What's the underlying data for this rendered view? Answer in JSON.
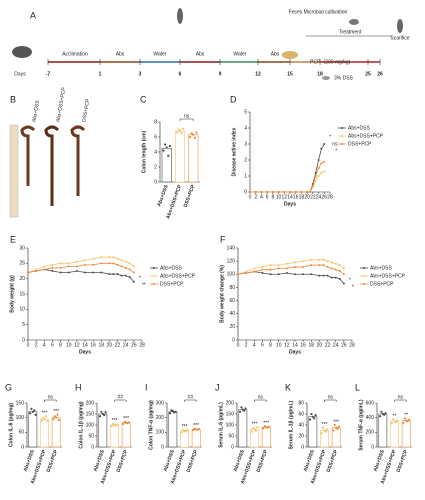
{
  "timeline": {
    "panel": "A",
    "phases": [
      "Acclimation",
      "Abs",
      "Water",
      "Abs",
      "Water",
      "Abs"
    ],
    "days_label": "Days",
    "days": [
      -7,
      1,
      3,
      6,
      9,
      12,
      15,
      18,
      25,
      26
    ],
    "feces": "Feces Microbial cultivation",
    "treatment": "Treatment",
    "pcp": "PCP（200 mg/kg)",
    "dss": "3% DSS",
    "end": "Scarifice"
  },
  "photo": {
    "panel": "B",
    "labels": [
      "Abs+DSS",
      "Abs+DSS+PCP",
      "DSS+PCP"
    ]
  },
  "chart_data": [
    {
      "type": "bar",
      "panel": "C",
      "ylabel": "Colon length (cm)",
      "categories": [
        "Abs+DSS",
        "Abs+DSS+PCP",
        "DSS+PCP"
      ],
      "colors": [
        "#4d4d4d",
        "#f5c46a",
        "#f08a3c"
      ],
      "values": [
        4.5,
        6.8,
        6.3
      ],
      "points": [
        [
          4.2,
          5.0,
          4.6,
          3.5,
          4.8
        ],
        [
          6.6,
          7.0,
          6.8,
          6.5,
          7.1
        ],
        [
          6.0,
          6.5,
          6.3,
          5.9,
          6.6
        ]
      ],
      "ylim": [
        0,
        8
      ],
      "yticks": [
        0,
        2,
        4,
        6,
        8
      ],
      "annotation": "ns"
    },
    {
      "type": "line",
      "panel": "D",
      "ylabel": "Disease active index",
      "xlabel": "Days",
      "x": [
        0,
        2,
        4,
        6,
        8,
        10,
        12,
        14,
        16,
        18,
        20,
        21,
        22,
        23,
        24,
        25,
        26
      ],
      "xlim": [
        0,
        28
      ],
      "xticks": [
        0,
        2,
        4,
        6,
        8,
        10,
        12,
        14,
        16,
        18,
        20,
        22,
        24,
        26,
        28
      ],
      "ylim": [
        0,
        5
      ],
      "yticks": [
        0,
        1,
        2,
        3,
        4,
        5
      ],
      "series": [
        {
          "name": "Abs+DSS",
          "color": "#4d4d4d",
          "values": [
            0,
            0,
            0,
            0,
            0,
            0,
            0,
            0,
            0,
            0,
            0,
            0,
            0.5,
            1.2,
            2.0,
            2.7,
            3.0
          ]
        },
        {
          "name": "Abs+DSS+PCP",
          "color": "#f5c46a",
          "values": [
            0,
            0,
            0,
            0,
            0,
            0,
            0,
            0,
            0,
            0,
            0,
            0,
            0.3,
            0.7,
            1.0,
            1.2,
            1.3
          ]
        },
        {
          "name": "DSS+PCP",
          "color": "#f08a3c",
          "values": [
            0,
            0,
            0,
            0,
            0,
            0,
            0,
            0,
            0,
            0,
            0,
            0,
            0.4,
            1.0,
            1.5,
            1.8,
            1.9
          ]
        }
      ],
      "annotations": [
        "*",
        "ns",
        "*"
      ]
    },
    {
      "type": "line",
      "panel": "E",
      "ylabel": "Body weight (g)",
      "xlabel": "Days",
      "x": [
        0,
        2,
        4,
        6,
        8,
        10,
        12,
        14,
        16,
        18,
        20,
        21,
        22,
        23,
        24,
        25,
        26
      ],
      "xlim": [
        0,
        28
      ],
      "xticks": [
        0,
        2,
        4,
        6,
        8,
        10,
        12,
        14,
        16,
        18,
        20,
        22,
        24,
        26,
        28
      ],
      "ylim": [
        0,
        30
      ],
      "yticks": [
        0,
        5,
        10,
        15,
        20,
        25,
        30
      ],
      "series": [
        {
          "name": "Abs+DSS",
          "color": "#4d4d4d",
          "values": [
            22,
            22.5,
            23,
            22.5,
            22,
            22,
            22.5,
            22,
            22,
            22,
            21.5,
            21.5,
            21.5,
            21,
            21,
            20.5,
            19
          ]
        },
        {
          "name": "Abs+DSS+PCP",
          "color": "#f5c46a",
          "values": [
            22,
            23,
            24,
            24.5,
            25,
            25,
            25.5,
            26,
            26.5,
            27,
            27,
            27,
            26.5,
            26,
            25.5,
            25,
            24
          ]
        },
        {
          "name": "DSS+PCP",
          "color": "#f08a3c",
          "values": [
            22,
            22.5,
            23,
            23.5,
            23.5,
            24,
            24,
            24.5,
            24.5,
            25,
            25,
            25,
            24.5,
            24,
            23.5,
            23,
            22
          ]
        }
      ],
      "annotations": [
        "*",
        "**"
      ]
    },
    {
      "type": "line",
      "panel": "F",
      "ylabel": "Body weight change (%)",
      "xlabel": "Days",
      "x": [
        0,
        2,
        4,
        6,
        8,
        10,
        12,
        14,
        16,
        18,
        20,
        21,
        22,
        23,
        24,
        25,
        26
      ],
      "xlim": [
        0,
        28
      ],
      "xticks": [
        0,
        2,
        4,
        6,
        8,
        10,
        12,
        14,
        16,
        18,
        20,
        22,
        24,
        26,
        28
      ],
      "ylim": [
        0,
        140
      ],
      "yticks": [
        0,
        20,
        40,
        60,
        80,
        100,
        120,
        140
      ],
      "series": [
        {
          "name": "Abs+DSS",
          "color": "#4d4d4d",
          "values": [
            100,
            102,
            104,
            102,
            100,
            100,
            102,
            100,
            100,
            100,
            98,
            98,
            98,
            95,
            95,
            93,
            86
          ]
        },
        {
          "name": "Abs+DSS+PCP",
          "color": "#f5c46a",
          "values": [
            100,
            104,
            109,
            111,
            114,
            114,
            116,
            118,
            120,
            122,
            122,
            122,
            120,
            118,
            116,
            114,
            109
          ]
        },
        {
          "name": "DSS+PCP",
          "color": "#f08a3c",
          "values": [
            100,
            102,
            104,
            107,
            107,
            109,
            109,
            111,
            111,
            114,
            114,
            114,
            111,
            109,
            107,
            105,
            100
          ]
        }
      ],
      "annotations": [
        "*",
        "*"
      ]
    },
    {
      "type": "bar",
      "panel": "G",
      "ylabel": "Colon IL-6 (pg/mg)",
      "categories": [
        "Abs+DSS",
        "Abs+DSS+PCP",
        "DSS+PCP"
      ],
      "colors": [
        "#4d4d4d",
        "#f5c46a",
        "#f08a3c"
      ],
      "values": [
        120,
        95,
        100
      ],
      "points": [
        [
          115,
          130,
          120,
          125,
          110
        ],
        [
          90,
          100,
          95,
          105,
          88
        ],
        [
          95,
          105,
          100,
          110,
          92
        ]
      ],
      "ylim": [
        0,
        150
      ],
      "yticks": [
        0,
        50,
        100,
        150
      ],
      "annotation": "ns",
      "star_labels": [
        null,
        "***",
        "***"
      ]
    },
    {
      "type": "bar",
      "panel": "H",
      "ylabel": "Colon IL-1β (pg/mg)",
      "categories": [
        "Abs+DSS",
        "Abs+DSS+PCP",
        "DSS+PCP"
      ],
      "colors": [
        "#4d4d4d",
        "#f5c46a",
        "#f08a3c"
      ],
      "values": [
        150,
        100,
        110
      ],
      "points": [
        [
          140,
          160,
          150,
          145,
          158
        ],
        [
          95,
          105,
          100,
          98,
          102
        ],
        [
          105,
          115,
          110,
          108,
          112
        ]
      ],
      "ylim": [
        0,
        200
      ],
      "yticks": [
        0,
        50,
        100,
        150,
        200
      ],
      "annotation": "##",
      "star_labels": [
        null,
        "***",
        "***"
      ]
    },
    {
      "type": "bar",
      "panel": "I",
      "ylabel": "Colon TNF-α (pg/mg)",
      "categories": [
        "Abs+DSS",
        "Abs+DSS+PCP",
        "DSS+PCP"
      ],
      "colors": [
        "#4d4d4d",
        "#f5c46a",
        "#f08a3c"
      ],
      "values": [
        240,
        110,
        120
      ],
      "points": [
        [
          230,
          250,
          245,
          235,
          240
        ],
        [
          100,
          115,
          110,
          105,
          118
        ],
        [
          115,
          125,
          120,
          118,
          122
        ]
      ],
      "ylim": [
        0,
        300
      ],
      "yticks": [
        0,
        100,
        200,
        300
      ],
      "annotation": "##",
      "star_labels": [
        null,
        "***",
        "***"
      ]
    },
    {
      "type": "bar",
      "panel": "J",
      "ylabel": "Serum IL-6 (pg/mL)",
      "categories": [
        "Abs+DSS",
        "Abs+DSS+PCP",
        "DSS+PCP"
      ],
      "colors": [
        "#4d4d4d",
        "#f5c46a",
        "#f08a3c"
      ],
      "values": [
        170,
        80,
        90
      ],
      "points": [
        [
          160,
          180,
          170,
          165,
          175
        ],
        [
          70,
          85,
          80,
          75,
          90
        ],
        [
          85,
          95,
          90,
          88,
          92
        ]
      ],
      "ylim": [
        0,
        200
      ],
      "yticks": [
        0,
        50,
        100,
        150,
        200
      ],
      "annotation": "ns",
      "star_labels": [
        null,
        "***",
        "***"
      ]
    },
    {
      "type": "bar",
      "panel": "K",
      "ylabel": "Serum IL-1β (pg/mL)",
      "categories": [
        "Abs+DSS",
        "Abs+DSS+PCP",
        "DSS+PCP"
      ],
      "colors": [
        "#4d4d4d",
        "#f5c46a",
        "#f08a3c"
      ],
      "values": [
        55,
        30,
        35
      ],
      "points": [
        [
          50,
          60,
          55,
          52,
          58
        ],
        [
          25,
          35,
          30,
          28,
          32
        ],
        [
          30,
          40,
          35,
          33,
          37
        ]
      ],
      "ylim": [
        0,
        80
      ],
      "yticks": [
        0,
        20,
        40,
        60,
        80
      ],
      "annotation": "ns",
      "star_labels": [
        null,
        "***",
        "***"
      ]
    },
    {
      "type": "bar",
      "panel": "L",
      "ylabel": "Serum TNF-α (pg/mL)",
      "categories": [
        "Abs+DSS",
        "Abs+DSS+PCP",
        "DSS+PCP"
      ],
      "colors": [
        "#4d4d4d",
        "#f5c46a",
        "#f08a3c"
      ],
      "values": [
        450,
        350,
        360
      ],
      "points": [
        [
          420,
          480,
          450,
          440,
          460
        ],
        [
          320,
          380,
          350,
          340,
          360
        ],
        [
          330,
          390,
          360,
          350,
          370
        ]
      ],
      "ylim": [
        0,
        600
      ],
      "yticks": [
        0,
        200,
        400,
        600
      ],
      "annotation": "ns",
      "star_labels": [
        null,
        "**",
        "**"
      ]
    }
  ]
}
